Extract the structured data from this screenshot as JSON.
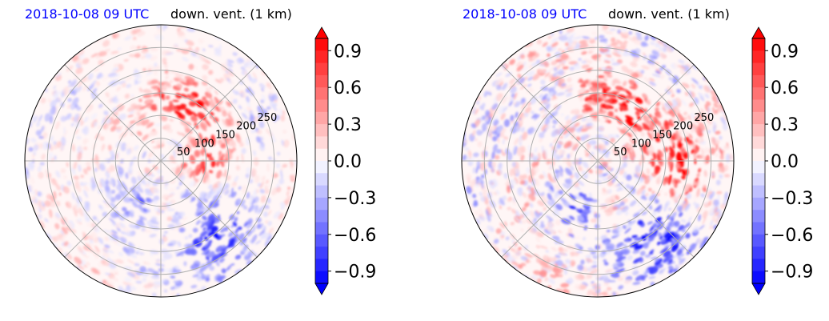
{
  "colors": {
    "positive": "#ff0000",
    "negative": "#0000ff",
    "neutral": "#ffffff",
    "title_left": "#0000ff",
    "title_right": "#000000",
    "grid": "#b0b0b0"
  },
  "chart_data": [
    {
      "type": "heatmap",
      "projection": "polar",
      "title_left": "2018-10-08 09 UTC",
      "title_right": "down. vent. (1 km)",
      "radial_ticks": [
        50,
        100,
        150,
        200,
        250
      ],
      "radial_tick_labels": [
        "50",
        "100",
        "150",
        "200",
        "250"
      ],
      "rmax": 300,
      "angular_grid_deg": 45,
      "grid": true,
      "colorbar": {
        "ticks": [
          0.9,
          0.6,
          0.3,
          0.0,
          -0.3,
          -0.6,
          -0.9
        ],
        "tick_labels": [
          "0.9",
          "0.6",
          "0.3",
          "0.0",
          "−0.3",
          "−0.6",
          "−0.9"
        ],
        "vmin": -1.0,
        "vmax": 1.0,
        "levels": 20,
        "extend": "both",
        "colormap": "bwr"
      }
    },
    {
      "type": "heatmap",
      "projection": "polar",
      "title_left": "2018-10-08 09 UTC",
      "title_right": "down. vent. (1 km)",
      "radial_ticks": [
        50,
        100,
        150,
        200,
        250
      ],
      "radial_tick_labels": [
        "50",
        "100",
        "150",
        "200",
        "250"
      ],
      "rmax": 300,
      "angular_grid_deg": 45,
      "grid": true,
      "colorbar": {
        "ticks": [
          0.9,
          0.6,
          0.3,
          0.0,
          -0.3,
          -0.6,
          -0.9
        ],
        "tick_labels": [
          "0.9",
          "0.6",
          "0.3",
          "0.0",
          "−0.3",
          "−0.6",
          "−0.9"
        ],
        "vmin": -1.0,
        "vmax": 1.0,
        "levels": 20,
        "extend": "both",
        "colormap": "bwr"
      }
    }
  ]
}
